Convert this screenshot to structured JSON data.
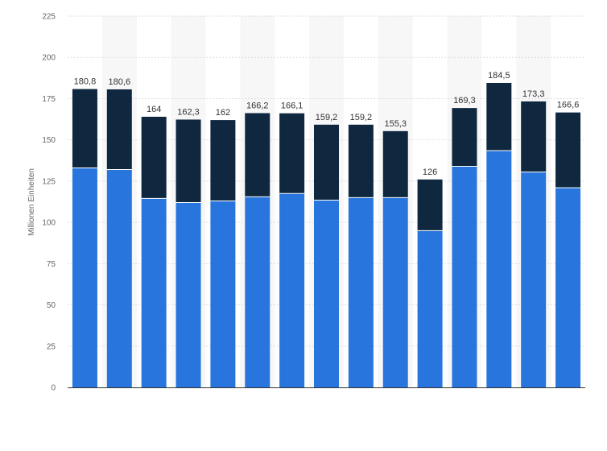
{
  "chart_data": {
    "type": "bar",
    "stacked": true,
    "title": "",
    "xlabel": "",
    "ylabel": "Millionen Einheiten",
    "ylim": [
      0,
      225
    ],
    "yticks": [
      "0",
      "25",
      "50",
      "75",
      "100",
      "125",
      "150",
      "175",
      "200",
      "225"
    ],
    "ytick_values": [
      0,
      25,
      50,
      75,
      100,
      125,
      150,
      175,
      200,
      225
    ],
    "grid": true,
    "categories": [
      "",
      "",
      "",
      "",
      "",
      "",
      "",
      "",
      "",
      "",
      "",
      "",
      "",
      "",
      ""
    ],
    "series": [
      {
        "color": "#2876dd",
        "values": [
          133,
          132,
          114.5,
          112,
          113,
          115.5,
          117.5,
          113.5,
          115,
          115,
          95,
          134,
          143.5,
          130.5,
          121
        ]
      },
      {
        "color": "#0f2840",
        "values": [
          47.8,
          48.6,
          49.5,
          50.3,
          49,
          50.7,
          48.6,
          45.7,
          44.2,
          40.3,
          31,
          35.3,
          41,
          42.8,
          45.6
        ]
      }
    ],
    "totals": [
      180.8,
      180.6,
      164,
      162.3,
      162,
      166.2,
      166.1,
      159.2,
      159.2,
      155.3,
      126,
      169.3,
      184.5,
      173.3,
      166.6
    ],
    "total_labels": [
      "180,8",
      "180,6",
      "164",
      "162,3",
      "162",
      "166,2",
      "166,1",
      "159,2",
      "159,2",
      "155,3",
      "126",
      "169,3",
      "184,5",
      "173,3",
      "166,6"
    ]
  }
}
